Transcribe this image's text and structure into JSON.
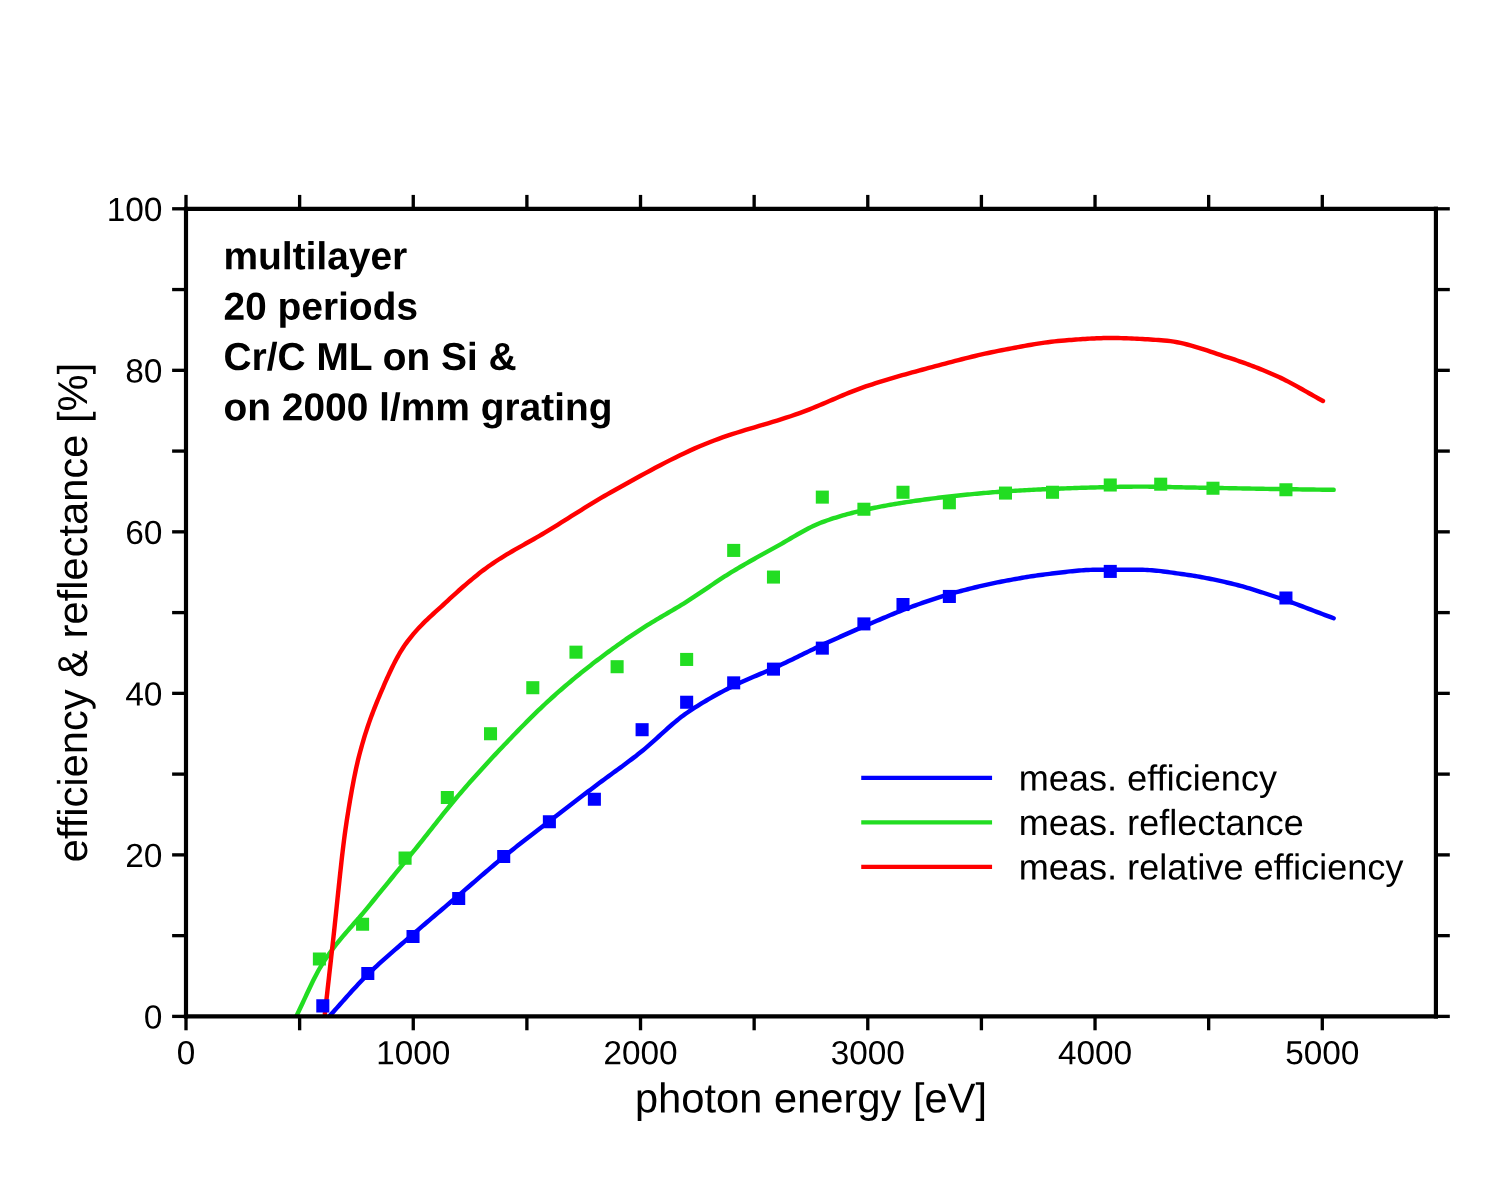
{
  "chart_data": {
    "type": "line",
    "xlabel": "photon energy [eV]",
    "ylabel": "efficiency & reflectance [%]",
    "annotations": [
      "multilayer\n20 periods\nCr/C ML on Si &\non 2000 l/mm grating"
    ],
    "xlim": [
      0,
      5500
    ],
    "ylim": [
      0,
      100
    ],
    "xticks": [
      0,
      {
        "value": 500,
        "label": null
      },
      1000,
      {
        "value": 1500,
        "label": null
      },
      2000,
      {
        "value": 2500,
        "label": null
      },
      3000,
      {
        "value": 3500,
        "label": null
      },
      4000,
      {
        "value": 4500,
        "label": null
      },
      5000
    ],
    "yticks": [
      0,
      {
        "value": 10,
        "label": null
      },
      20,
      {
        "value": 30,
        "label": null
      },
      40,
      {
        "value": 50,
        "label": null
      },
      60,
      {
        "value": 70,
        "label": null
      },
      80,
      {
        "value": 90,
        "label": null
      },
      100
    ],
    "grid": false,
    "legend": "bottom right",
    "line_style": "solid",
    "marker": "none",
    "series": [
      {
        "name": "meas. efficiency",
        "color": "#0000ff",
        "x": [
          630,
          800,
          1000,
          1200,
          1400,
          1600,
          1800,
          2000,
          2200,
          2400,
          2600,
          2800,
          3000,
          3200,
          3400,
          3600,
          3800,
          4000,
          4200,
          4400,
          4600,
          4800,
          5050
        ],
        "values": [
          0,
          5.2,
          10.2,
          15.0,
          19.8,
          24.2,
          28.5,
          32.7,
          37.5,
          40.8,
          43.3,
          46.0,
          48.5,
          50.8,
          52.6,
          53.9,
          54.8,
          55.3,
          55.3,
          54.7,
          53.6,
          51.9,
          49.3
        ]
      },
      {
        "name": "meas. reflectance",
        "color": "#22dd22",
        "x": [
          485,
          600,
          800,
          1000,
          1200,
          1400,
          1600,
          1800,
          2000,
          2200,
          2400,
          2600,
          2800,
          3000,
          3200,
          3400,
          3600,
          3800,
          4000,
          4200,
          4400,
          4600,
          4800,
          5050
        ],
        "values": [
          0,
          6.5,
          13.5,
          20.4,
          27.4,
          33.6,
          39.2,
          43.9,
          47.9,
          51.3,
          55.0,
          58.2,
          61.2,
          62.8,
          63.8,
          64.5,
          65.0,
          65.3,
          65.5,
          65.6,
          65.5,
          65.4,
          65.3,
          65.2
        ]
      },
      {
        "name": "meas. relative efficiency",
        "color": "#ff0000",
        "x": [
          611,
          646,
          704,
          762,
          850,
          966,
          1141,
          1340,
          1579,
          1870,
          2304,
          2700,
          2991,
          3283,
          3574,
          3866,
          4067,
          4303,
          4595,
          4799,
          5003
        ],
        "values": [
          0.3,
          9.1,
          23.6,
          32.3,
          39.6,
          46.1,
          51.2,
          55.9,
          59.9,
          64.9,
          71.1,
          74.7,
          78.0,
          80.4,
          82.4,
          83.7,
          84.0,
          83.7,
          81.5,
          79.3,
          76.2
        ]
      },
      {
        "type": "scatter",
        "marker": "square",
        "color": "#0000ff",
        "x": [
          602,
          800,
          999,
          1200,
          1398,
          1599,
          1797,
          2007,
          2203,
          2410,
          2585,
          2800,
          2983,
          3155,
          3359,
          4067,
          4840
        ],
        "values": [
          1.3,
          5.3,
          9.9,
          14.6,
          19.8,
          24.1,
          26.9,
          35.5,
          38.9,
          41.3,
          43.0,
          45.6,
          48.6,
          51.0,
          52.0,
          55.1,
          51.8
        ]
      },
      {
        "type": "scatter",
        "marker": "square",
        "color": "#22dd22",
        "x": [
          587,
          777,
          964,
          1150,
          1340,
          1526,
          1716,
          1897,
          2203,
          2410,
          2585,
          2800,
          2983,
          3155,
          3359,
          3606,
          3813,
          4067,
          4289,
          4519,
          4840
        ],
        "values": [
          7.1,
          11.4,
          19.6,
          27.1,
          35.0,
          40.7,
          45.1,
          43.3,
          44.2,
          57.7,
          54.4,
          64.3,
          62.8,
          64.9,
          63.6,
          64.8,
          64.9,
          65.8,
          65.9,
          65.4,
          65.2
        ]
      }
    ]
  }
}
